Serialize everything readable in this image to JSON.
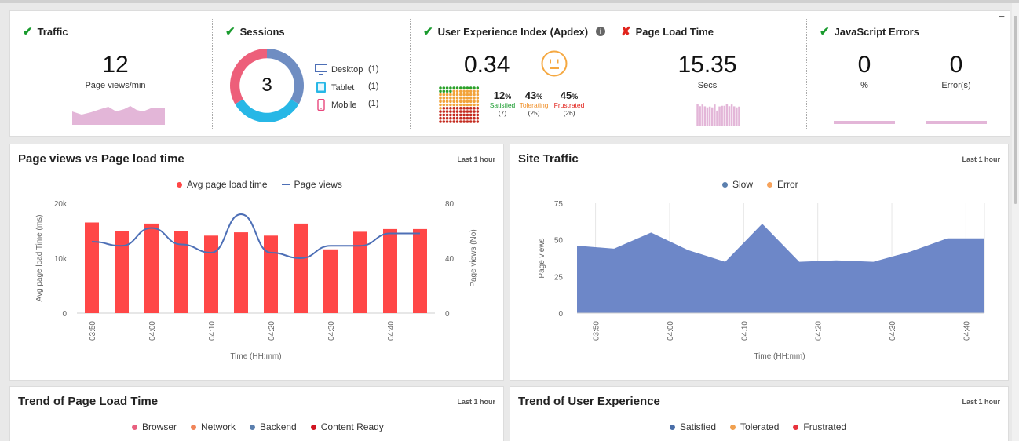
{
  "kpis": {
    "traffic": {
      "title": "Traffic",
      "value": "12",
      "unit": "Page views/min",
      "status": "ok"
    },
    "sessions": {
      "title": "Sessions",
      "value": "3",
      "devices": [
        {
          "name": "Desktop",
          "count": "(1)"
        },
        {
          "name": "Tablet",
          "count": "(1)"
        },
        {
          "name": "Mobile",
          "count": "(1)"
        }
      ]
    },
    "apdex": {
      "title": "User Experience Index (Apdex)",
      "value": "0.34",
      "satisfied": {
        "pct": "12",
        "label": "Satisfied",
        "count": "(7)"
      },
      "tolerating": {
        "pct": "43",
        "label": "Tolerating",
        "count": "(25)"
      },
      "frustrated": {
        "pct": "45",
        "label": "Frustrated",
        "count": "(26)"
      },
      "pct_sign": "%"
    },
    "page_load": {
      "title": "Page Load Time",
      "value": "15.35",
      "unit": "Secs",
      "status": "bad"
    },
    "js_errors": {
      "title": "JavaScript Errors",
      "percent_value": "0",
      "percent_label": "%",
      "errors_value": "0",
      "errors_label": "Error(s)"
    }
  },
  "minimize_glyph": "−",
  "panels": {
    "pv_load": {
      "title": "Page views vs Page load time",
      "range": "Last 1 hour"
    },
    "site_traffic": {
      "title": "Site Traffic",
      "range": "Last 1 hour"
    },
    "trend_load": {
      "title": "Trend of Page Load Time",
      "range": "Last 1 hour",
      "legend": [
        {
          "label": "Browser",
          "color": "#e8607f"
        },
        {
          "label": "Network",
          "color": "#f0855a"
        },
        {
          "label": "Backend",
          "color": "#5b7fae"
        },
        {
          "label": "Content Ready",
          "color": "#d01421"
        }
      ]
    },
    "trend_ux": {
      "title": "Trend of User Experience",
      "range": "Last 1 hour",
      "legend": [
        {
          "label": "Satisfied",
          "color": "#4a6ea8"
        },
        {
          "label": "Tolerated",
          "color": "#f0a050"
        },
        {
          "label": "Frustrated",
          "color": "#e8323c"
        }
      ]
    }
  },
  "chart_data": [
    {
      "type": "bar",
      "title": "Page views vs Page load time",
      "legend": [
        {
          "label": "Avg page load time",
          "color": "#ff4747"
        },
        {
          "label": "Page views",
          "color": "#4d6fb6"
        }
      ],
      "xlabel": "Time (HH:mm)",
      "ylabel": "Avg page load Time (ms)",
      "y2label": "Page views (No)",
      "ylim": [
        0,
        20000
      ],
      "y2lim": [
        0,
        80
      ],
      "yticks": [
        "20k",
        "10k",
        "0"
      ],
      "y2ticks": [
        "80",
        "40",
        "0"
      ],
      "xticks": [
        "03:50",
        "04:00",
        "04:10",
        "04:20",
        "04:30",
        "04:40"
      ],
      "series": [
        {
          "name": "Avg page load time",
          "values": [
            16500,
            15000,
            16300,
            14900,
            14100,
            14700,
            14100,
            16300,
            11600,
            14800,
            15300,
            15300
          ]
        },
        {
          "name": "Page views",
          "values": [
            52,
            49,
            62,
            50,
            44,
            72,
            44,
            40,
            49,
            49,
            58,
            58
          ]
        }
      ]
    },
    {
      "type": "area",
      "title": "Site Traffic",
      "legend": [
        {
          "label": "Slow",
          "color": "#5b7fae"
        },
        {
          "label": "Error",
          "color": "#f7a35c"
        }
      ],
      "xlabel": "Time (HH:mm)",
      "ylabel": "Page views",
      "ylim": [
        0,
        75
      ],
      "yticks": [
        "75",
        "50",
        "25",
        "0"
      ],
      "xticks": [
        "03:50",
        "04:00",
        "04:10",
        "04:20",
        "04:30",
        "04:40"
      ],
      "series": [
        {
          "name": "Slow",
          "values": [
            46,
            44,
            55,
            43,
            35,
            61,
            35,
            36,
            35,
            42,
            51,
            51
          ]
        }
      ]
    }
  ]
}
